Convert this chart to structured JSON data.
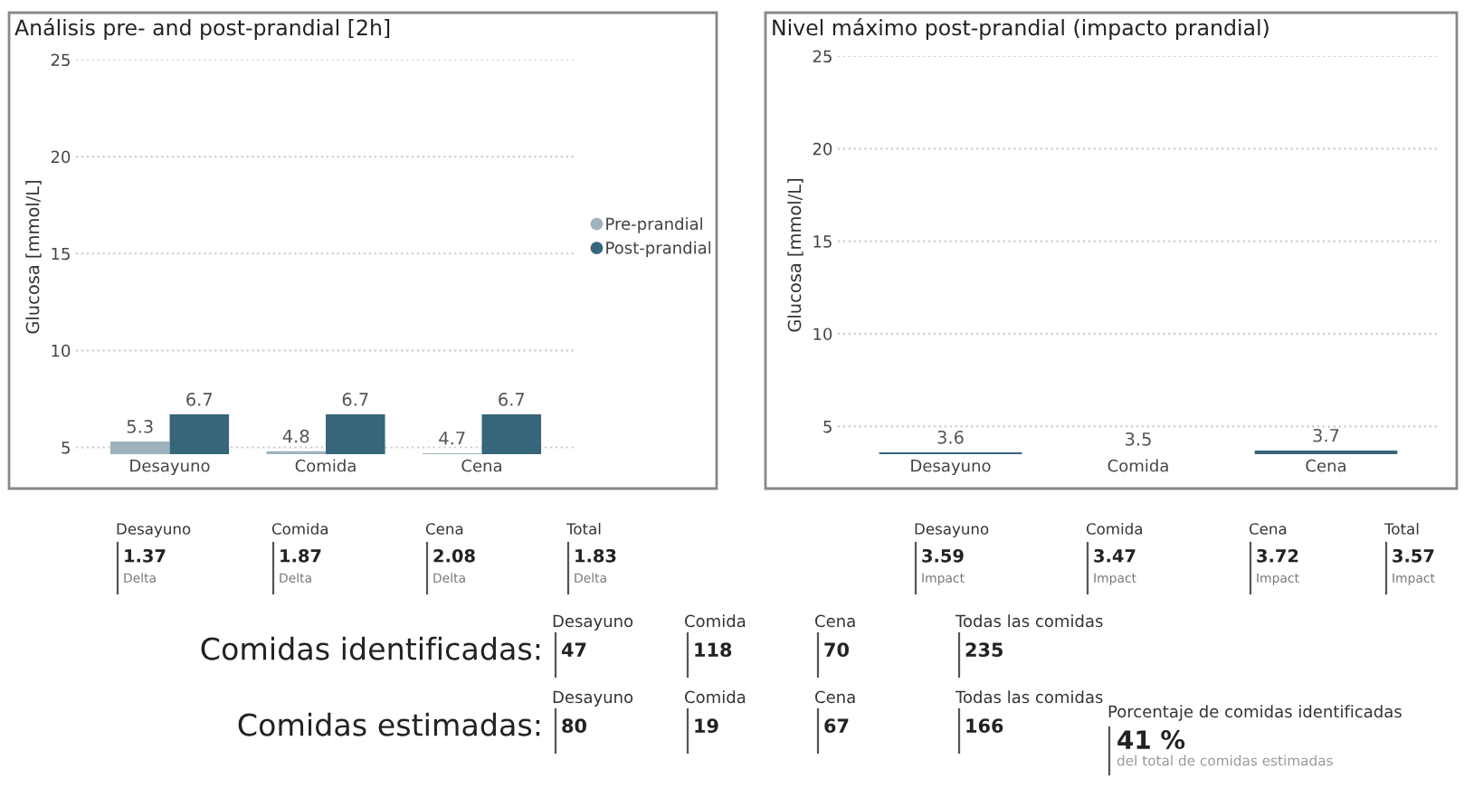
{
  "chart_data": [
    {
      "type": "bar",
      "title": "Análisis pre- and post-prandial [2h]",
      "ylabel": "Glucosa [mmol/L]",
      "categories": [
        "Desayuno",
        "Comida",
        "Cena"
      ],
      "series": [
        {
          "name": "Pre-prandial",
          "color": "#9db4be",
          "values": [
            5.3,
            4.8,
            4.7
          ]
        },
        {
          "name": "Post-prandial",
          "color": "#37657a",
          "values": [
            6.7,
            6.7,
            6.7
          ]
        }
      ],
      "ylim": [
        4.65,
        25
      ],
      "yticks": [
        5,
        10,
        15,
        20,
        25
      ],
      "grid": "y",
      "legend": "right",
      "data_labels": true,
      "annotations": [
        "Desayuno",
        "1.37",
        "Delta",
        "Comida",
        "1.87",
        "Delta",
        "Cena",
        "2.08",
        "Delta",
        "Total",
        "1.83",
        "Delta"
      ]
    },
    {
      "type": "bar",
      "title": "Nivel máximo post-prandial (impacto prandial)",
      "ylabel": "Glucosa [mmol/L]",
      "categories": [
        "Desayuno",
        "Comida",
        "Cena"
      ],
      "series": [
        {
          "color": "#37657a",
          "values": [
            3.6,
            3.5,
            3.7
          ]
        }
      ],
      "ylim": [
        3.5,
        25
      ],
      "yticks": [
        5,
        10,
        15,
        20,
        25
      ],
      "grid": "y",
      "data_labels": true,
      "annotations": [
        "Desayuno",
        "3.59",
        "Impact",
        "Comida",
        "3.47",
        "Impact",
        "Cena",
        "3.72",
        "Impact",
        "Total",
        "3.57",
        "Impact"
      ]
    },
    {
      "type": "other",
      "annotations": [
        "Comidas identificadas:",
        "Desayuno",
        "47",
        "Comida",
        "118",
        "Cena",
        "70",
        "Todas las comidas",
        "235",
        "Comidas estimadas:",
        "Desayuno",
        "80",
        "Comida",
        "19",
        "Cena",
        "67",
        "Todas las comidas",
        "166",
        "Porcentaje de comidas identificadas",
        "41 %",
        "del total de comidas estimadas"
      ]
    }
  ]
}
